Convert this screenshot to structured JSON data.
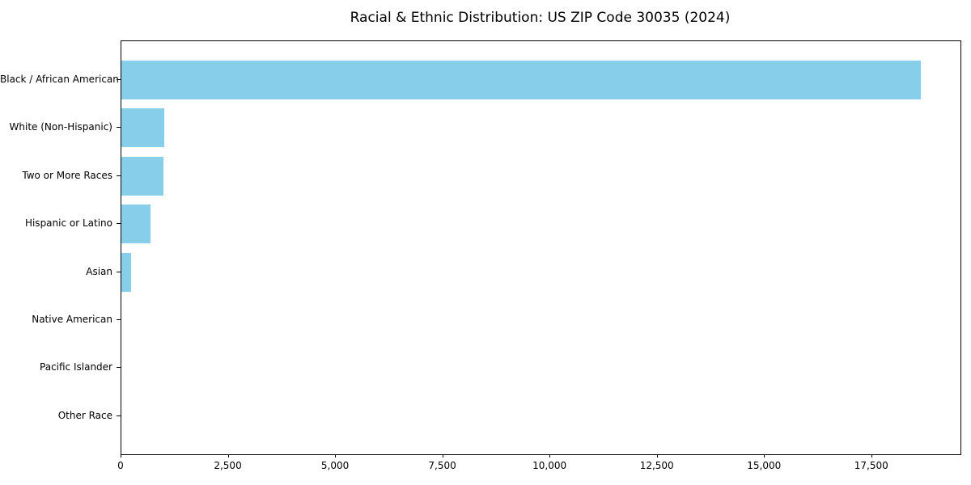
{
  "chart_data": {
    "type": "bar",
    "orientation": "horizontal",
    "title": "Racial & Ethnic Distribution: US ZIP Code 30035 (2024)",
    "categories": [
      "Black / African American",
      "White (Non-Hispanic)",
      "Two or More Races",
      "Hispanic or Latino",
      "Asian",
      "Native American",
      "Pacific Islander",
      "Other Race"
    ],
    "values": [
      18630,
      1000,
      990,
      680,
      225,
      0,
      0,
      0
    ],
    "xlabel": "",
    "ylabel": "",
    "xlim": [
      0,
      19560
    ],
    "xticks": [
      0,
      2500,
      5000,
      7500,
      10000,
      12500,
      15000,
      17500
    ],
    "xtick_labels": [
      "0",
      "2,500",
      "5,000",
      "7,500",
      "10,000",
      "12,500",
      "15,000",
      "17,500"
    ],
    "bar_color": "#87CEEB",
    "axis_color": "#000000",
    "grid": false,
    "legend": null
  }
}
